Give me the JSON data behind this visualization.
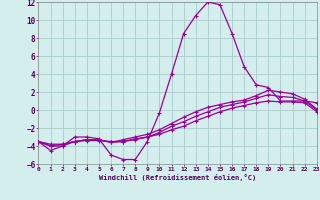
{
  "xlabel": "Windchill (Refroidissement éolien,°C)",
  "bg_color": "#d4eeed",
  "grid_color": "#aacccc",
  "line_color": "#990099",
  "xlim": [
    0,
    23
  ],
  "ylim": [
    -6,
    12
  ],
  "yticks": [
    -6,
    -4,
    -2,
    0,
    2,
    4,
    6,
    8,
    10,
    12
  ],
  "xticks": [
    0,
    1,
    2,
    3,
    4,
    5,
    6,
    7,
    8,
    9,
    10,
    11,
    12,
    13,
    14,
    15,
    16,
    17,
    18,
    19,
    20,
    21,
    22,
    23
  ],
  "series1_x": [
    0,
    1,
    2,
    3,
    4,
    5,
    6,
    7,
    8,
    9,
    10,
    11,
    12,
    13,
    14,
    15,
    16,
    17,
    18,
    19,
    20,
    21,
    22,
    23
  ],
  "series1_y": [
    -3.5,
    -4.5,
    -4.0,
    -3.0,
    -3.0,
    -3.2,
    -5.0,
    -5.5,
    -5.5,
    -3.5,
    -0.3,
    4.0,
    8.5,
    10.5,
    12.0,
    11.7,
    8.5,
    4.8,
    2.8,
    2.5,
    1.0,
    1.0,
    1.0,
    0.8
  ],
  "series2_x": [
    0,
    1,
    2,
    3,
    4,
    5,
    6,
    7,
    8,
    9,
    10,
    11,
    12,
    13,
    14,
    15,
    16,
    17,
    18,
    19,
    20,
    21,
    22,
    23
  ],
  "series2_y": [
    -3.5,
    -3.8,
    -3.8,
    -3.5,
    -3.4,
    -3.4,
    -3.5,
    -3.5,
    -3.3,
    -3.0,
    -2.7,
    -2.2,
    -1.8,
    -1.2,
    -0.7,
    -0.2,
    0.2,
    0.5,
    0.8,
    1.0,
    0.9,
    0.9,
    0.8,
    -0.2
  ],
  "series3_x": [
    0,
    1,
    2,
    3,
    4,
    5,
    6,
    7,
    8,
    9,
    10,
    11,
    12,
    13,
    14,
    15,
    16,
    17,
    18,
    19,
    20,
    21,
    22,
    23
  ],
  "series3_y": [
    -3.5,
    -4.0,
    -3.8,
    -3.5,
    -3.3,
    -3.3,
    -3.6,
    -3.5,
    -3.2,
    -3.0,
    -2.5,
    -1.8,
    -1.3,
    -0.7,
    -0.2,
    0.3,
    0.6,
    0.9,
    1.3,
    1.7,
    1.5,
    1.4,
    1.0,
    0.0
  ],
  "series4_x": [
    0,
    1,
    2,
    3,
    4,
    5,
    6,
    7,
    8,
    9,
    10,
    11,
    12,
    13,
    14,
    15,
    16,
    17,
    18,
    19,
    20,
    21,
    22,
    23
  ],
  "series4_y": [
    -3.5,
    -4.0,
    -4.0,
    -3.5,
    -3.3,
    -3.3,
    -3.6,
    -3.3,
    -3.0,
    -2.7,
    -2.2,
    -1.5,
    -0.8,
    -0.2,
    0.3,
    0.6,
    0.9,
    1.1,
    1.6,
    2.2,
    2.0,
    1.8,
    1.2,
    0.1
  ]
}
